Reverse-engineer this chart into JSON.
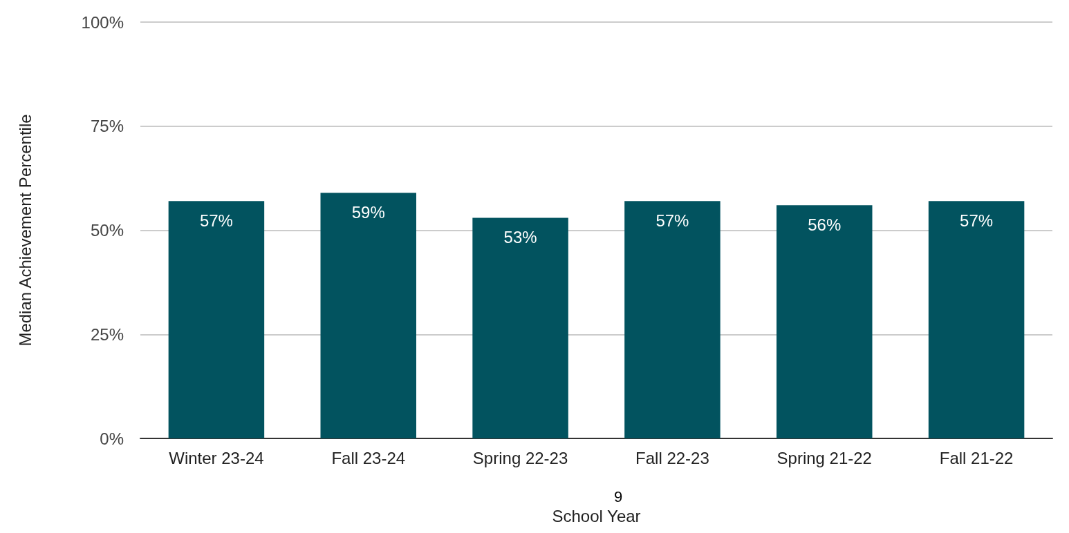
{
  "chart_data": {
    "type": "bar",
    "xlabel": "School Year",
    "ylabel": "Median Achievement Percentile",
    "categories": [
      "Winter 23-24",
      "Fall 23-24",
      "Spring 22-23",
      "Fall 22-23",
      "Spring 21-22",
      "Fall 21-22"
    ],
    "values": [
      57,
      59,
      53,
      57,
      56,
      57
    ],
    "value_labels": [
      "57%",
      "59%",
      "53%",
      "57%",
      "56%",
      "57%"
    ],
    "color": "#02535f",
    "ylim": [
      0,
      100
    ],
    "yticks": [
      {
        "value": 0,
        "label": "0%"
      },
      {
        "value": 25,
        "label": "25%"
      },
      {
        "value": 50,
        "label": "50%"
      },
      {
        "value": 75,
        "label": "75%"
      },
      {
        "value": 100,
        "label": "100%"
      }
    ],
    "grid": "y",
    "annotations": [
      "9"
    ]
  }
}
